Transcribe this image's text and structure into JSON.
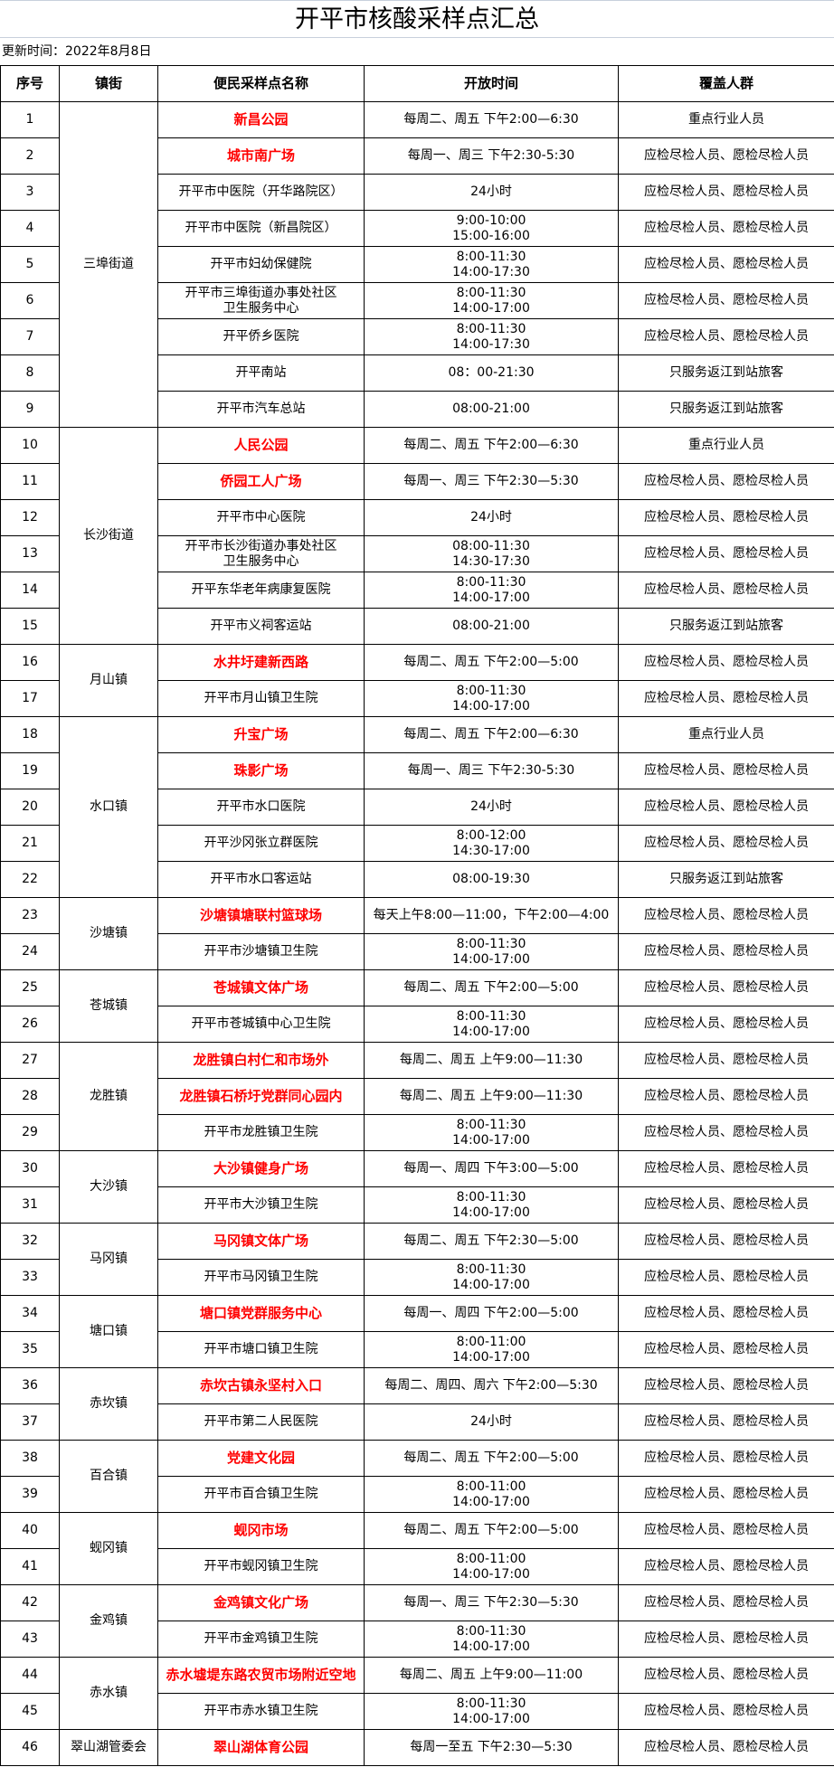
{
  "title": "开平市核酸采样点汇总",
  "update_time": "更新时间：2022年8月8日",
  "headers": [
    "序号",
    "镇街",
    "便民采样点名称",
    "开放时间",
    "覆盖人群"
  ],
  "groups": [
    {
      "name": "三埠街道",
      "rows": [
        {
          "no": "1",
          "site": "新昌公园",
          "highlight": true,
          "time": "每周二、周五 下午2:00—6:30",
          "crowd": "重点行业人员"
        },
        {
          "no": "2",
          "site": "城市南广场",
          "highlight": true,
          "time": "每周一、周三 下午2:30-5:30",
          "crowd": "应检尽检人员、愿检尽检人员"
        },
        {
          "no": "3",
          "site": "开平市中医院（开华路院区）",
          "highlight": false,
          "time": "24小时",
          "crowd": "应检尽检人员、愿检尽检人员"
        },
        {
          "no": "4",
          "site": "开平市中医院（新昌院区）",
          "highlight": false,
          "time": "9:00-10:00\n15:00-16:00",
          "crowd": "应检尽检人员、愿检尽检人员"
        },
        {
          "no": "5",
          "site": "开平市妇幼保健院",
          "highlight": false,
          "time": "8:00-11:30\n14:00-17:30",
          "crowd": "应检尽检人员、愿检尽检人员"
        },
        {
          "no": "6",
          "site": "开平市三埠街道办事处社区\n卫生服务中心",
          "highlight": false,
          "time": "8:00-11:30\n14:00-17:00",
          "crowd": "应检尽检人员、愿检尽检人员"
        },
        {
          "no": "7",
          "site": "开平侨乡医院",
          "highlight": false,
          "time": "8:00-11:30\n14:00-17:30",
          "crowd": "应检尽检人员、愿检尽检人员"
        },
        {
          "no": "8",
          "site": "开平南站",
          "highlight": false,
          "time": "08：00-21:30",
          "crowd": "只服务返江到站旅客"
        },
        {
          "no": "9",
          "site": "开平市汽车总站",
          "highlight": false,
          "time": "08:00-21:00",
          "crowd": "只服务返江到站旅客"
        }
      ]
    },
    {
      "name": "长沙街道",
      "rows": [
        {
          "no": "10",
          "site": "人民公园",
          "highlight": true,
          "time": "每周二、周五 下午2:00—6:30",
          "crowd": "重点行业人员"
        },
        {
          "no": "11",
          "site": "侨园工人广场",
          "highlight": true,
          "time": "每周一、周三 下午2:30—5:30",
          "crowd": "应检尽检人员、愿检尽检人员"
        },
        {
          "no": "12",
          "site": "开平市中心医院",
          "highlight": false,
          "time": "24小时",
          "crowd": "应检尽检人员、愿检尽检人员"
        },
        {
          "no": "13",
          "site": "开平市长沙街道办事处社区\n卫生服务中心",
          "highlight": false,
          "time": "08:00-11:30\n14:30-17:30",
          "crowd": "应检尽检人员、愿检尽检人员"
        },
        {
          "no": "14",
          "site": "开平东华老年病康复医院",
          "highlight": false,
          "time": "8:00-11:30\n14:00-17:00",
          "crowd": "应检尽检人员、愿检尽检人员"
        },
        {
          "no": "15",
          "site": "开平市义祠客运站",
          "highlight": false,
          "time": "08:00-21:00",
          "crowd": "只服务返江到站旅客"
        }
      ]
    },
    {
      "name": "月山镇",
      "rows": [
        {
          "no": "16",
          "site": "水井圩建新西路",
          "highlight": true,
          "time": "每周二、周五 下午2:00—5:00",
          "crowd": "应检尽检人员、愿检尽检人员"
        },
        {
          "no": "17",
          "site": "开平市月山镇卫生院",
          "highlight": false,
          "time": "8:00-11:30\n14:00-17:00",
          "crowd": "应检尽检人员、愿检尽检人员"
        }
      ]
    },
    {
      "name": "水口镇",
      "rows": [
        {
          "no": "18",
          "site": "升宝广场",
          "highlight": true,
          "time": "每周二、周五 下午2:00—6:30",
          "crowd": "重点行业人员"
        },
        {
          "no": "19",
          "site": "珠影广场",
          "highlight": true,
          "time": "每周一、周三 下午2:30-5:30",
          "crowd": "应检尽检人员、愿检尽检人员"
        },
        {
          "no": "20",
          "site": "开平市水口医院",
          "highlight": false,
          "time": "24小时",
          "crowd": "应检尽检人员、愿检尽检人员"
        },
        {
          "no": "21",
          "site": "开平沙冈张立群医院",
          "highlight": false,
          "time": "8:00-12:00\n14:30-17:00",
          "crowd": "应检尽检人员、愿检尽检人员"
        },
        {
          "no": "22",
          "site": "开平市水口客运站",
          "highlight": false,
          "time": "08:00-19:30",
          "crowd": "只服务返江到站旅客"
        }
      ]
    },
    {
      "name": "沙塘镇",
      "rows": [
        {
          "no": "23",
          "site": "沙塘镇塘联村篮球场",
          "highlight": true,
          "time": "每天上午8:00—11:00，下午2:00—4:00",
          "crowd": "应检尽检人员、愿检尽检人员"
        },
        {
          "no": "24",
          "site": "开平市沙塘镇卫生院",
          "highlight": false,
          "time": "8:00-11:30\n14:00-17:00",
          "crowd": "应检尽检人员、愿检尽检人员"
        }
      ]
    },
    {
      "name": "苍城镇",
      "rows": [
        {
          "no": "25",
          "site": "苍城镇文体广场",
          "highlight": true,
          "time": "每周二、周五 下午2:00—5:00",
          "crowd": "应检尽检人员、愿检尽检人员"
        },
        {
          "no": "26",
          "site": "开平市苍城镇中心卫生院",
          "highlight": false,
          "time": "8:00-11:30\n14:00-17:00",
          "crowd": "应检尽检人员、愿检尽检人员"
        }
      ]
    },
    {
      "name": "龙胜镇",
      "rows": [
        {
          "no": "27",
          "site": "龙胜镇白村仁和市场外",
          "highlight": true,
          "time": "每周二、周五 上午9:00—11:30",
          "crowd": "应检尽检人员、愿检尽检人员"
        },
        {
          "no": "28",
          "site": "龙胜镇石桥圩党群同心园内",
          "highlight": true,
          "time": "每周二、周五 上午9:00—11:30",
          "crowd": "应检尽检人员、愿检尽检人员"
        },
        {
          "no": "29",
          "site": "开平市龙胜镇卫生院",
          "highlight": false,
          "time": "8:00-11:30\n14:00-17:00",
          "crowd": "应检尽检人员、愿检尽检人员"
        }
      ]
    },
    {
      "name": "大沙镇",
      "rows": [
        {
          "no": "30",
          "site": "大沙镇健身广场",
          "highlight": true,
          "time": "每周一、周四 下午3:00—5:00",
          "crowd": "应检尽检人员、愿检尽检人员"
        },
        {
          "no": "31",
          "site": "开平市大沙镇卫生院",
          "highlight": false,
          "time": "8:00-11:30\n14:00-17:00",
          "crowd": "应检尽检人员、愿检尽检人员"
        }
      ]
    },
    {
      "name": "马冈镇",
      "rows": [
        {
          "no": "32",
          "site": "马冈镇文体广场",
          "highlight": true,
          "time": "每周二、周五 下午2:30—5:00",
          "crowd": "应检尽检人员、愿检尽检人员"
        },
        {
          "no": "33",
          "site": "开平市马冈镇卫生院",
          "highlight": false,
          "time": "8:00-11:30\n14:00-17:00",
          "crowd": "应检尽检人员、愿检尽检人员"
        }
      ]
    },
    {
      "name": "塘口镇",
      "rows": [
        {
          "no": "34",
          "site": "塘口镇党群服务中心",
          "highlight": true,
          "time": "每周一、周四 下午2:00—5:00",
          "crowd": "应检尽检人员、愿检尽检人员"
        },
        {
          "no": "35",
          "site": "开平市塘口镇卫生院",
          "highlight": false,
          "time": "8:00-11:00\n14:00-17:00",
          "crowd": "应检尽检人员、愿检尽检人员"
        }
      ]
    },
    {
      "name": "赤坎镇",
      "rows": [
        {
          "no": "36",
          "site": "赤坎古镇永坚村入口",
          "highlight": true,
          "time": "每周二、周四、周六 下午2:00—5:30",
          "crowd": "应检尽检人员、愿检尽检人员"
        },
        {
          "no": "37",
          "site": "开平市第二人民医院",
          "highlight": false,
          "time": "24小时",
          "crowd": "应检尽检人员、愿检尽检人员"
        }
      ]
    },
    {
      "name": "百合镇",
      "rows": [
        {
          "no": "38",
          "site": "党建文化园",
          "highlight": true,
          "time": "每周二、周五 下午2:00—5:00",
          "crowd": "应检尽检人员、愿检尽检人员"
        },
        {
          "no": "39",
          "site": "开平市百合镇卫生院",
          "highlight": false,
          "time": "8:00-11:00\n14:00-17:00",
          "crowd": "应检尽检人员、愿检尽检人员"
        }
      ]
    },
    {
      "name": "蚬冈镇",
      "rows": [
        {
          "no": "40",
          "site": "蚬冈市场",
          "highlight": true,
          "time": "每周二、周五 下午2:00—5:00",
          "crowd": "应检尽检人员、愿检尽检人员"
        },
        {
          "no": "41",
          "site": "开平市蚬冈镇卫生院",
          "highlight": false,
          "time": "8:00-11:00\n14:00-17:00",
          "crowd": "应检尽检人员、愿检尽检人员"
        }
      ]
    },
    {
      "name": "金鸡镇",
      "rows": [
        {
          "no": "42",
          "site": "金鸡镇文化广场",
          "highlight": true,
          "time": "每周一、周三 下午2:30—5:30",
          "crowd": "应检尽检人员、愿检尽检人员"
        },
        {
          "no": "43",
          "site": "开平市金鸡镇卫生院",
          "highlight": false,
          "time": "8:00-11:30\n14:00-17:00",
          "crowd": "应检尽检人员、愿检尽检人员"
        }
      ]
    },
    {
      "name": "赤水镇",
      "rows": [
        {
          "no": "44",
          "site": "赤水墟堤东路农贸市场附近空地",
          "highlight": true,
          "time": "每周二、周五 上午9:00—11:00",
          "crowd": "应检尽检人员、愿检尽检人员"
        },
        {
          "no": "45",
          "site": "开平市赤水镇卫生院",
          "highlight": false,
          "time": "8:00-11:30\n14:00-17:00",
          "crowd": "应检尽检人员、愿检尽检人员"
        }
      ]
    },
    {
      "name": "翠山湖管委会",
      "rows": [
        {
          "no": "46",
          "site": "翠山湖体育公园",
          "highlight": true,
          "time": "每周一至五 下午2:30—5:30",
          "crowd": "应检尽检人员、愿检尽检人员"
        }
      ]
    }
  ],
  "colors": {
    "highlight": "#ff0000",
    "border": "#000000"
  }
}
